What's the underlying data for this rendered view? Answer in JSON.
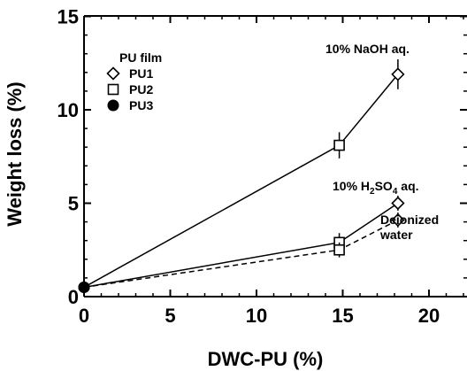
{
  "chart_data": {
    "type": "line",
    "xlabel": "DWC-PU (%)",
    "ylabel": "Weight loss (%)",
    "xlim": [
      0,
      22
    ],
    "ylim": [
      0,
      15
    ],
    "x_ticks": [
      "0",
      "5",
      "10",
      "15",
      "20"
    ],
    "y_ticks": [
      "0",
      "5",
      "10",
      "15"
    ],
    "legend": {
      "title": "PU film",
      "entries": [
        {
          "label": "PU1",
          "marker": "diamond"
        },
        {
          "label": "PU2",
          "marker": "square"
        },
        {
          "label": "PU3",
          "marker": "circle-filled"
        }
      ],
      "position": "top-left"
    },
    "series": [
      {
        "label": "10% NaOH aq.",
        "line": "solid",
        "points": [
          {
            "x": 0,
            "y": 0.5,
            "marker": "circle-filled"
          },
          {
            "x": 14.8,
            "y": 8.1,
            "marker": "square",
            "err": 0.7
          },
          {
            "x": 18.2,
            "y": 11.9,
            "marker": "diamond",
            "err": 0.8
          }
        ]
      },
      {
        "label_parts": [
          "10% H",
          "2",
          "SO",
          "4",
          " aq."
        ],
        "line": "solid",
        "points": [
          {
            "x": 0,
            "y": 0.5,
            "marker": "circle-filled"
          },
          {
            "x": 14.8,
            "y": 2.9,
            "marker": "square",
            "err": 0.5
          },
          {
            "x": 18.2,
            "y": 5.0,
            "marker": "diamond",
            "err": 0.4
          }
        ]
      },
      {
        "label_lines": [
          "Deionized",
          "water"
        ],
        "line": "dashed",
        "points": [
          {
            "x": 0,
            "y": 0.5,
            "marker": "circle-filled"
          },
          {
            "x": 14.8,
            "y": 2.5,
            "marker": "square",
            "err": 0.4
          },
          {
            "x": 18.2,
            "y": 4.1,
            "marker": "diamond",
            "err": 0.4
          }
        ]
      }
    ]
  }
}
